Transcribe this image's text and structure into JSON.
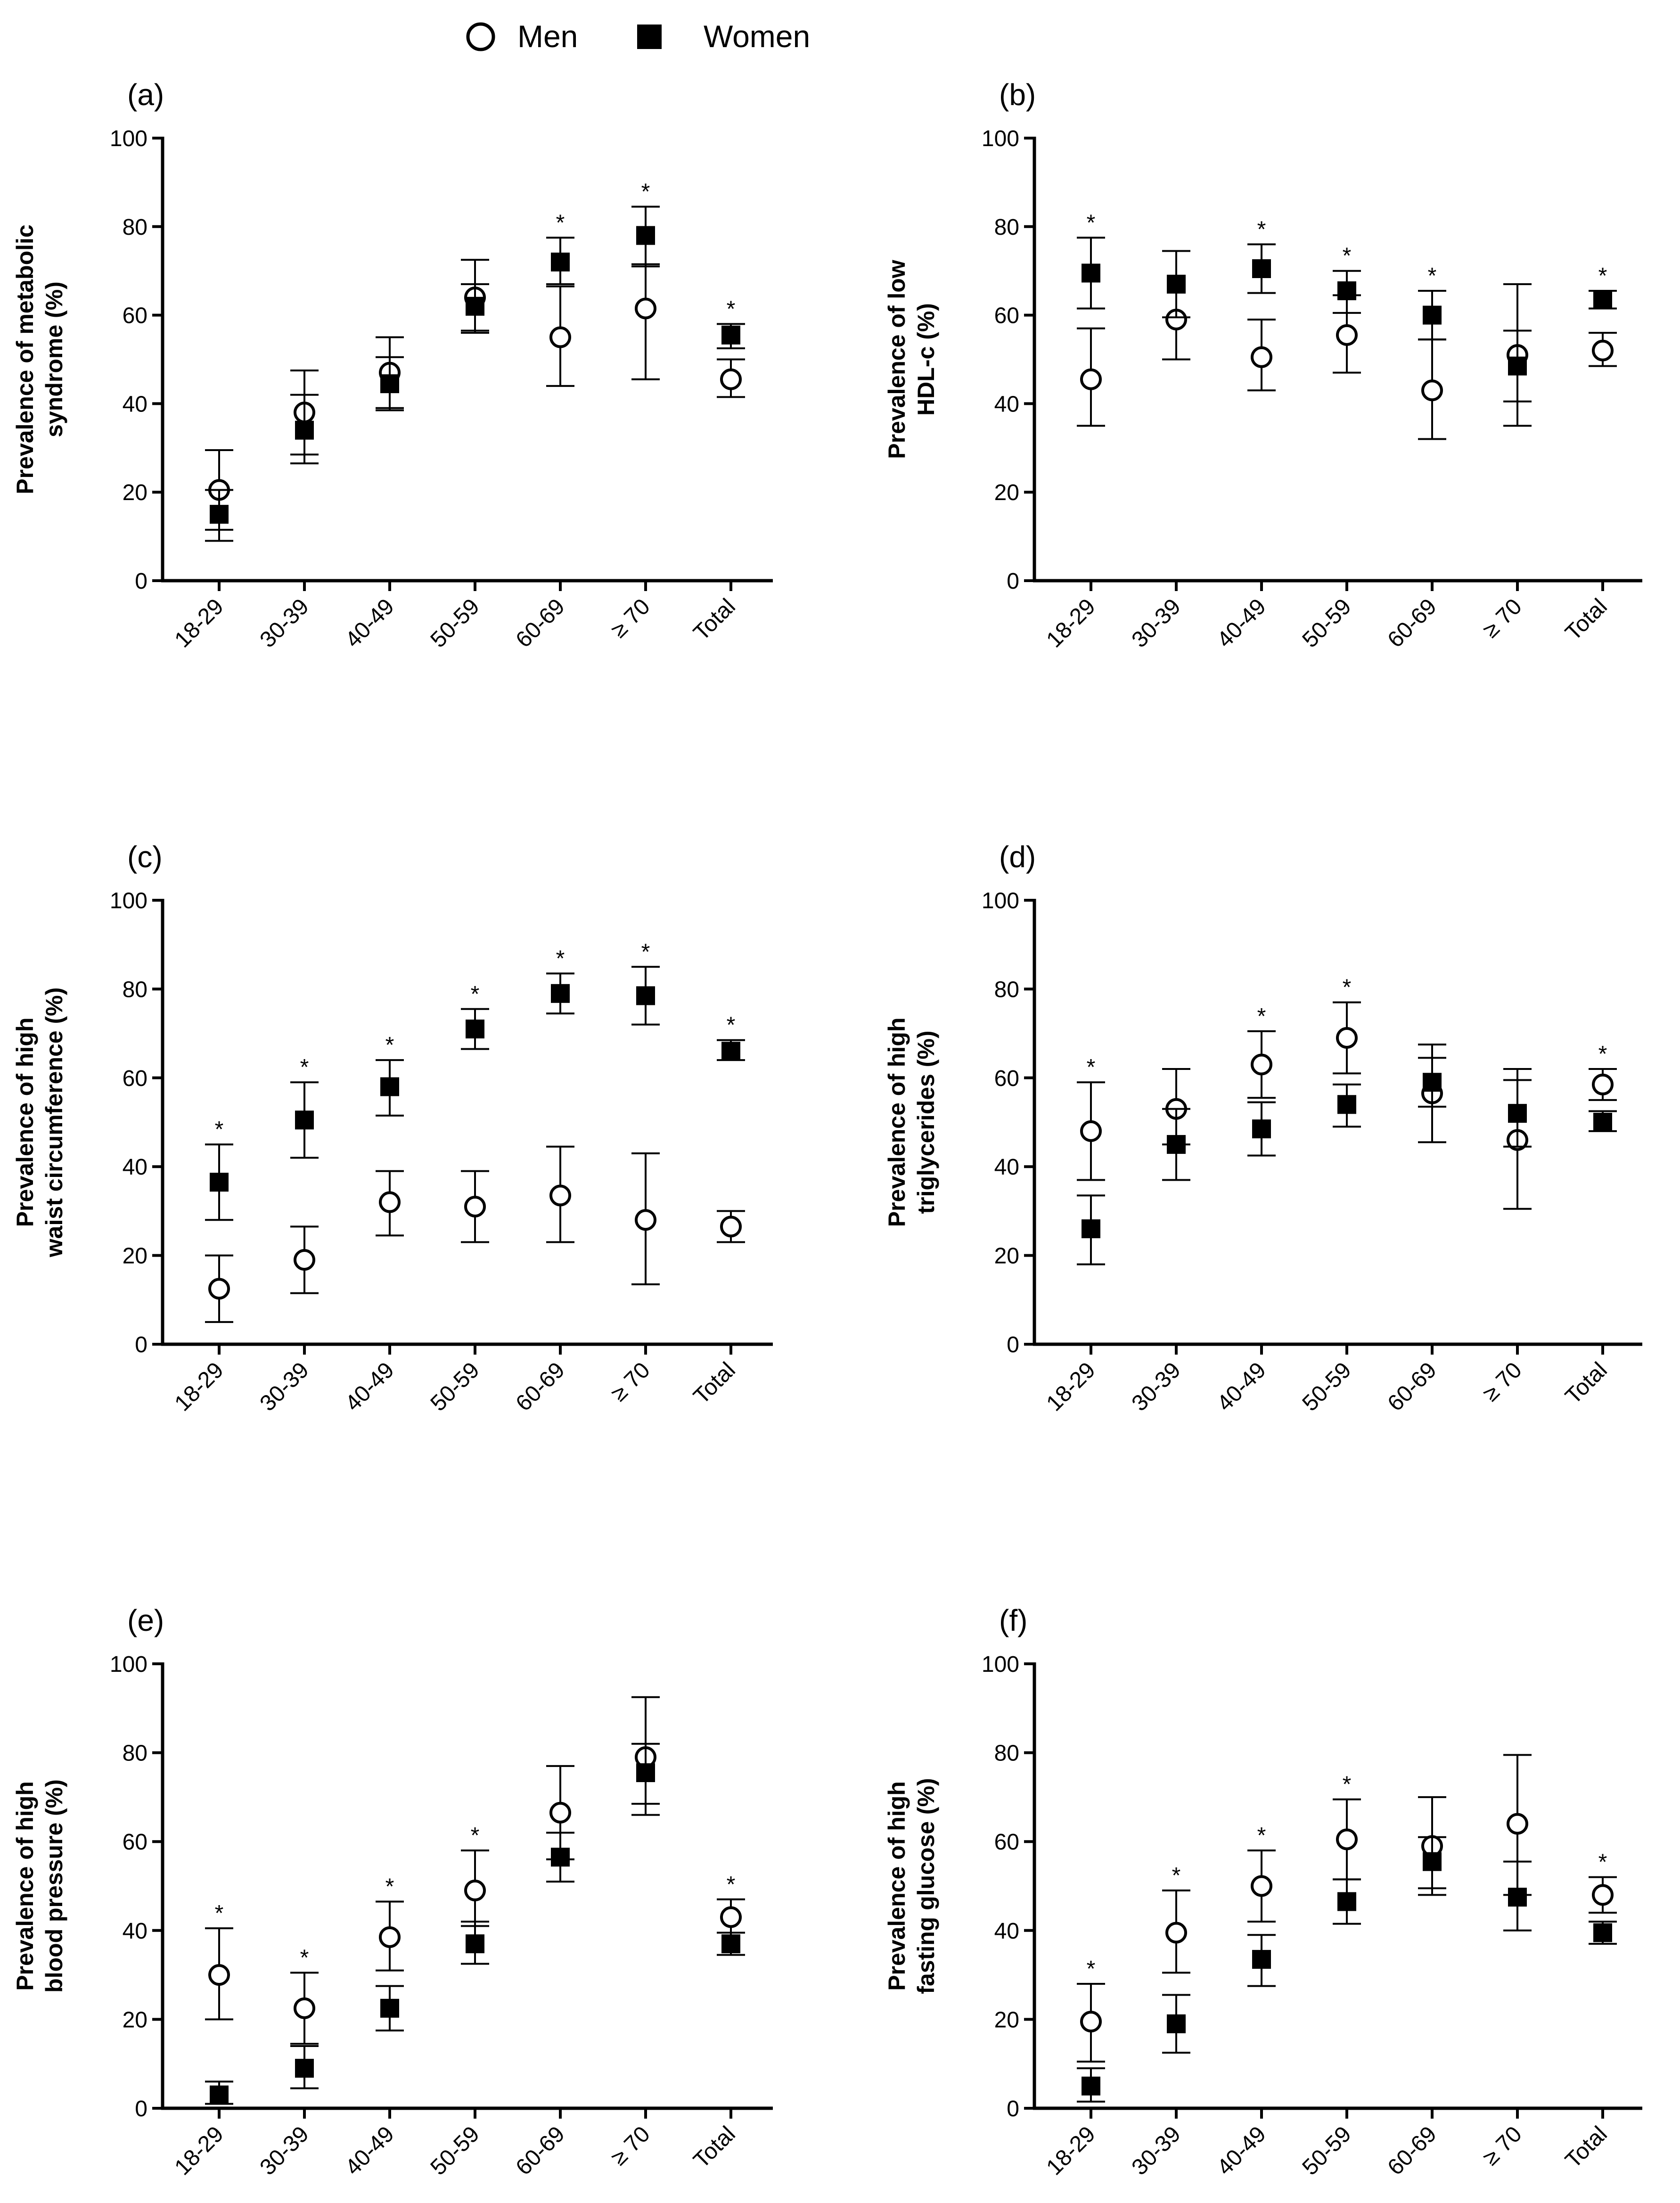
{
  "legend": {
    "men_label": "Men",
    "women_label": "Women",
    "men_marker": "open-circle",
    "women_marker": "filled-square"
  },
  "colors": {
    "ink": "#000000",
    "background": "#ffffff"
  },
  "chart_data": [
    {
      "panel": "(a)",
      "type": "scatter",
      "ylabel_lines": [
        "Prevalence of metabolic",
        "syndrome (%)"
      ],
      "categories": [
        "18-29",
        "30-39",
        "40-49",
        "50-59",
        "60-69",
        "≥ 70",
        "Total"
      ],
      "ylim": [
        0,
        100
      ],
      "yticks": [
        0,
        20,
        40,
        60,
        80,
        100
      ],
      "series": [
        {
          "name": "Men",
          "values": [
            20.5,
            38,
            47,
            64,
            55,
            61.5,
            45.5
          ],
          "lower": [
            11.5,
            28.5,
            39,
            56,
            44,
            45.5,
            41.5
          ],
          "upper": [
            29.5,
            47.5,
            55,
            72.5,
            66.5,
            71.5,
            50
          ]
        },
        {
          "name": "Women",
          "values": [
            15,
            34,
            44.5,
            62,
            72,
            78,
            55.5
          ],
          "lower": [
            9,
            26.5,
            38.5,
            56.5,
            67,
            71,
            52.5
          ],
          "upper": [
            20.5,
            42,
            50.5,
            67,
            77.5,
            84.5,
            58
          ]
        }
      ],
      "significant": [
        false,
        false,
        false,
        false,
        true,
        true,
        true
      ],
      "significance_mark": "*"
    },
    {
      "panel": "(b)",
      "type": "scatter",
      "ylabel_lines": [
        "Prevalence of low",
        "HDL-c (%)"
      ],
      "categories": [
        "18-29",
        "30-39",
        "40-49",
        "50-59",
        "60-69",
        "≥ 70",
        "Total"
      ],
      "ylim": [
        0,
        100
      ],
      "yticks": [
        0,
        20,
        40,
        60,
        80,
        100
      ],
      "series": [
        {
          "name": "Men",
          "values": [
            45.5,
            59,
            50.5,
            55.5,
            43,
            51,
            52
          ],
          "lower": [
            35,
            50,
            43,
            47,
            32,
            35,
            48.5
          ],
          "upper": [
            57,
            74.5,
            59,
            64.5,
            54.5,
            67,
            56
          ]
        },
        {
          "name": "Women",
          "values": [
            69.5,
            67,
            70.5,
            65.5,
            60,
            48.5,
            63.5
          ],
          "lower": [
            61.5,
            59.5,
            65,
            60.5,
            54.5,
            40.5,
            61.5
          ],
          "upper": [
            77.5,
            74.5,
            76,
            70,
            65.5,
            56.5,
            65.5
          ]
        }
      ],
      "significant": [
        true,
        false,
        true,
        true,
        true,
        false,
        true
      ],
      "significance_mark": "*"
    },
    {
      "panel": "(c)",
      "type": "scatter",
      "ylabel_lines": [
        "Prevalence of high",
        "waist circumference (%)"
      ],
      "categories": [
        "18-29",
        "30-39",
        "40-49",
        "50-59",
        "60-69",
        "≥ 70",
        "Total"
      ],
      "ylim": [
        0,
        100
      ],
      "yticks": [
        0,
        20,
        40,
        60,
        80,
        100
      ],
      "series": [
        {
          "name": "Men",
          "values": [
            12.5,
            19,
            32,
            31,
            33.5,
            28,
            26.5
          ],
          "lower": [
            5,
            11.5,
            24.5,
            23,
            23,
            13.5,
            23
          ],
          "upper": [
            20,
            26.5,
            39,
            39,
            44.5,
            43,
            30
          ]
        },
        {
          "name": "Women",
          "values": [
            36.5,
            50.5,
            58,
            71,
            79,
            78.5,
            66
          ],
          "lower": [
            28,
            42,
            51.5,
            66.5,
            74.5,
            72,
            64
          ],
          "upper": [
            45,
            59,
            64,
            75.5,
            83.5,
            85,
            68.5
          ]
        }
      ],
      "significant": [
        true,
        true,
        true,
        true,
        true,
        true,
        true
      ],
      "significance_mark": "*"
    },
    {
      "panel": "(d)",
      "type": "scatter",
      "ylabel_lines": [
        "Prevalence of high",
        "triglycerides (%)"
      ],
      "categories": [
        "18-29",
        "30-39",
        "40-49",
        "50-59",
        "60-69",
        "≥ 70",
        "Total"
      ],
      "ylim": [
        0,
        100
      ],
      "yticks": [
        0,
        20,
        40,
        60,
        80,
        100
      ],
      "series": [
        {
          "name": "Men",
          "values": [
            48,
            53,
            63,
            69,
            56.5,
            46,
            58.5
          ],
          "lower": [
            37,
            45,
            55.5,
            61,
            45.5,
            30.5,
            55
          ],
          "upper": [
            59,
            62,
            70.5,
            77,
            67.5,
            62,
            62
          ]
        },
        {
          "name": "Women",
          "values": [
            26,
            45,
            48.5,
            54,
            59,
            52,
            50
          ],
          "lower": [
            18,
            37,
            42.5,
            49,
            53.5,
            44.5,
            48
          ],
          "upper": [
            33.5,
            53,
            54.5,
            58.5,
            64.5,
            59.5,
            52.5
          ]
        }
      ],
      "significant": [
        true,
        false,
        true,
        true,
        false,
        false,
        true
      ],
      "significance_mark": "*"
    },
    {
      "panel": "(e)",
      "type": "scatter",
      "ylabel_lines": [
        "Prevalence of high",
        "blood pressure (%)"
      ],
      "categories": [
        "18-29",
        "30-39",
        "40-49",
        "50-59",
        "60-69",
        "≥ 70",
        "Total"
      ],
      "ylim": [
        0,
        100
      ],
      "yticks": [
        0,
        20,
        40,
        60,
        80,
        100
      ],
      "series": [
        {
          "name": "Men",
          "values": [
            30,
            22.5,
            38.5,
            49,
            66.5,
            79,
            43
          ],
          "lower": [
            20,
            14.5,
            31,
            41,
            56,
            66,
            39.5
          ],
          "upper": [
            40.5,
            30.5,
            46.5,
            58,
            77,
            92.5,
            47
          ]
        },
        {
          "name": "Women",
          "values": [
            3,
            9,
            22.5,
            37,
            56.5,
            75.5,
            37
          ],
          "lower": [
            1,
            4.5,
            17.5,
            32.5,
            51,
            68.5,
            34.5
          ],
          "upper": [
            6,
            14,
            27.5,
            42,
            62,
            82,
            39.5
          ]
        }
      ],
      "significant": [
        true,
        true,
        true,
        true,
        false,
        false,
        true
      ],
      "significance_mark": "*"
    },
    {
      "panel": "(f)",
      "type": "scatter",
      "ylabel_lines": [
        "Prevalence of high",
        "fasting glucose (%)"
      ],
      "categories": [
        "18-29",
        "30-39",
        "40-49",
        "50-59",
        "60-69",
        "≥ 70",
        "Total"
      ],
      "ylim": [
        0,
        100
      ],
      "yticks": [
        0,
        20,
        40,
        60,
        80,
        100
      ],
      "series": [
        {
          "name": "Men",
          "values": [
            19.5,
            39.5,
            50,
            60.5,
            59,
            64,
            48
          ],
          "lower": [
            10.5,
            30.5,
            42,
            51.5,
            48,
            48,
            44
          ],
          "upper": [
            28,
            49,
            58,
            69.5,
            70,
            79.5,
            52
          ]
        },
        {
          "name": "Women",
          "values": [
            5,
            19,
            33.5,
            46.5,
            55.5,
            47.5,
            39.5
          ],
          "lower": [
            1.5,
            12.5,
            27.5,
            41.5,
            49.5,
            40,
            37
          ],
          "upper": [
            9,
            25.5,
            39,
            51.5,
            61,
            55.5,
            42
          ]
        }
      ],
      "significant": [
        true,
        true,
        true,
        true,
        false,
        false,
        true
      ],
      "significance_mark": "*"
    }
  ]
}
